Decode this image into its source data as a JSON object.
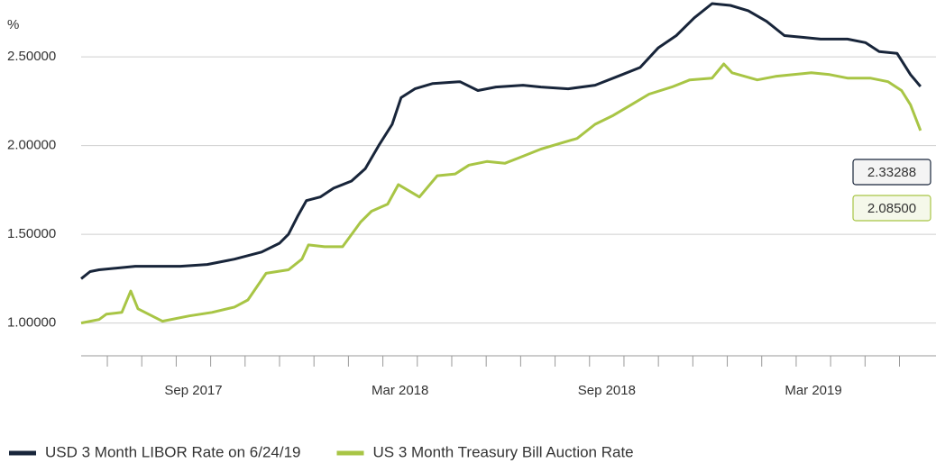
{
  "chart_data": {
    "type": "line",
    "y_label": "%",
    "ylim": [
      0.8,
      2.83
    ],
    "yticks": [
      {
        "value": 1.0,
        "label": "1.00000"
      },
      {
        "value": 1.5,
        "label": "1.50000"
      },
      {
        "value": 2.0,
        "label": "2.00000"
      },
      {
        "value": 2.5,
        "label": "2.50000"
      }
    ],
    "xlim": [
      5.24,
      30.06
    ],
    "xticks": [
      6,
      7,
      8,
      9,
      10,
      11,
      12,
      13,
      14,
      15,
      16,
      17,
      18,
      19,
      20,
      21,
      22,
      23,
      24,
      25,
      26,
      27,
      28,
      29
    ],
    "xtick_labels": [
      {
        "value": 8.5,
        "label": "Sep 2017"
      },
      {
        "value": 14.5,
        "label": "Mar 2018"
      },
      {
        "value": 20.5,
        "label": "Sep 2018"
      },
      {
        "value": 26.5,
        "label": "Mar 2019"
      }
    ],
    "grid": true,
    "legend": "bottom",
    "series": [
      {
        "name": "USD 3 Month LIBOR Rate on 6/24/19",
        "color": "#18253a",
        "end_label": "2.33288",
        "x": [
          5.24,
          5.5,
          5.76,
          6.81,
          8.12,
          8.9,
          9.69,
          10.48,
          11.0,
          11.26,
          11.52,
          11.78,
          12.18,
          12.57,
          13.09,
          13.49,
          13.88,
          14.27,
          14.53,
          14.93,
          15.45,
          16.24,
          16.76,
          17.28,
          18.07,
          18.59,
          19.38,
          20.16,
          20.95,
          21.47,
          21.99,
          22.52,
          23.04,
          23.56,
          24.09,
          24.61,
          25.14,
          25.66,
          26.18,
          26.71,
          27.49,
          28.01,
          28.41,
          28.93,
          29.32,
          29.61
        ],
        "values": [
          1.25,
          1.29,
          1.3,
          1.32,
          1.32,
          1.33,
          1.36,
          1.4,
          1.45,
          1.5,
          1.6,
          1.69,
          1.71,
          1.76,
          1.8,
          1.87,
          2.0,
          2.12,
          2.27,
          2.32,
          2.35,
          2.36,
          2.31,
          2.33,
          2.34,
          2.33,
          2.32,
          2.34,
          2.4,
          2.44,
          2.55,
          2.62,
          2.72,
          2.8,
          2.79,
          2.76,
          2.7,
          2.62,
          2.61,
          2.6,
          2.6,
          2.58,
          2.53,
          2.52,
          2.4,
          2.33288
        ]
      },
      {
        "name": "US 3 Month Treasury Bill Auction Rate",
        "color": "#a8c545",
        "end_label": "2.08500",
        "x": [
          5.24,
          5.76,
          5.97,
          6.42,
          6.68,
          6.89,
          7.6,
          8.38,
          9.04,
          9.69,
          10.08,
          10.61,
          11.26,
          11.65,
          11.84,
          12.31,
          12.83,
          13.36,
          13.67,
          14.14,
          14.45,
          15.06,
          15.58,
          16.1,
          16.5,
          17.02,
          17.54,
          17.94,
          18.59,
          19.11,
          19.64,
          20.16,
          20.69,
          21.21,
          21.73,
          22.39,
          22.91,
          23.56,
          23.9,
          24.14,
          24.87,
          25.4,
          25.92,
          26.44,
          26.97,
          27.49,
          28.15,
          28.67,
          29.06,
          29.32,
          29.61
        ],
        "values": [
          1.0,
          1.02,
          1.05,
          1.06,
          1.18,
          1.08,
          1.01,
          1.04,
          1.06,
          1.09,
          1.13,
          1.28,
          1.3,
          1.36,
          1.44,
          1.43,
          1.43,
          1.57,
          1.63,
          1.67,
          1.78,
          1.71,
          1.83,
          1.84,
          1.89,
          1.91,
          1.9,
          1.93,
          1.98,
          2.01,
          2.04,
          2.12,
          2.17,
          2.23,
          2.29,
          2.33,
          2.37,
          2.38,
          2.46,
          2.41,
          2.37,
          2.39,
          2.4,
          2.41,
          2.4,
          2.38,
          2.38,
          2.36,
          2.31,
          2.23,
          2.085
        ]
      }
    ]
  }
}
